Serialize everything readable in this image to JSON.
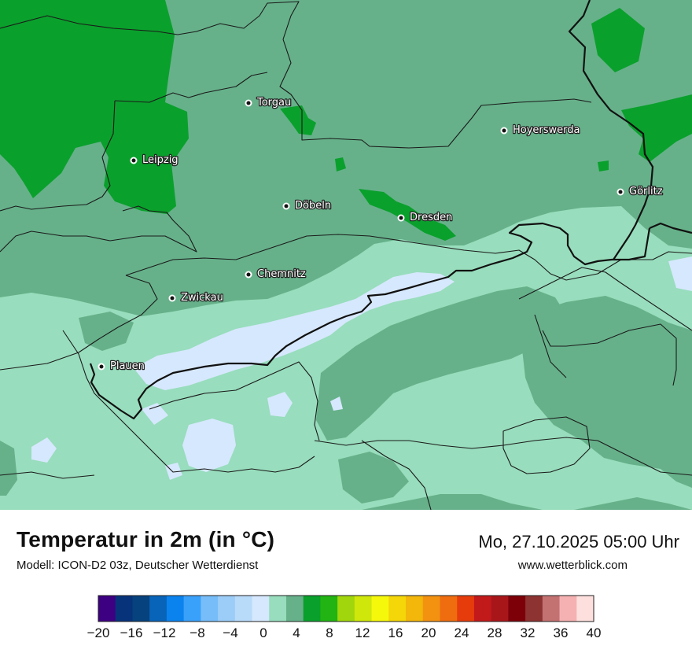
{
  "title": "Temperatur in 2m (in °C)",
  "subtitle": "Modell: ICON-D2 03z, Deutscher Wetterdienst",
  "datetime": "Mo, 27.10.2025 05:00 Uhr",
  "website": "www.wetterblick.com",
  "cities": [
    {
      "name": "Torgau"
    },
    {
      "name": "Hoyerswerda"
    },
    {
      "name": "Leipzig"
    },
    {
      "name": "Görlitz"
    },
    {
      "name": "Döbeln"
    },
    {
      "name": "Dresden"
    },
    {
      "name": "Chemnitz"
    },
    {
      "name": "Zwickau"
    },
    {
      "name": "Plauen"
    }
  ],
  "legend": {
    "unit": "°C",
    "min": -20,
    "max": 40,
    "step": 2,
    "tick_labels": [
      "−20",
      "−16",
      "−12",
      "−8",
      "−4",
      "0",
      "4",
      "8",
      "12",
      "16",
      "20",
      "24",
      "28",
      "32",
      "36",
      "40"
    ],
    "colors": [
      "#3d0082",
      "#06337a",
      "#06427e",
      "#0864b8",
      "#0a83ee",
      "#3aa1fb",
      "#76bdf9",
      "#9bcdf8",
      "#b9dbfa",
      "#d6e8fd",
      "#98ddbd",
      "#66b18a",
      "#0aa02c",
      "#22b412",
      "#a2d60c",
      "#cfe70a",
      "#f6f80c",
      "#f4d609",
      "#f3b60b",
      "#f39211",
      "#ef6c0f",
      "#e63c0c",
      "#c2191b",
      "#a9161a",
      "#7d0009",
      "#8d3332",
      "#c47171",
      "#f5b1b1",
      "#fde0de"
    ]
  },
  "map_colors": {
    "band_0_2": "#d6e8fd",
    "band_2_4": "#98ddbd",
    "band_4_6": "#66b18a",
    "band_6_8": "#0aa02c"
  }
}
